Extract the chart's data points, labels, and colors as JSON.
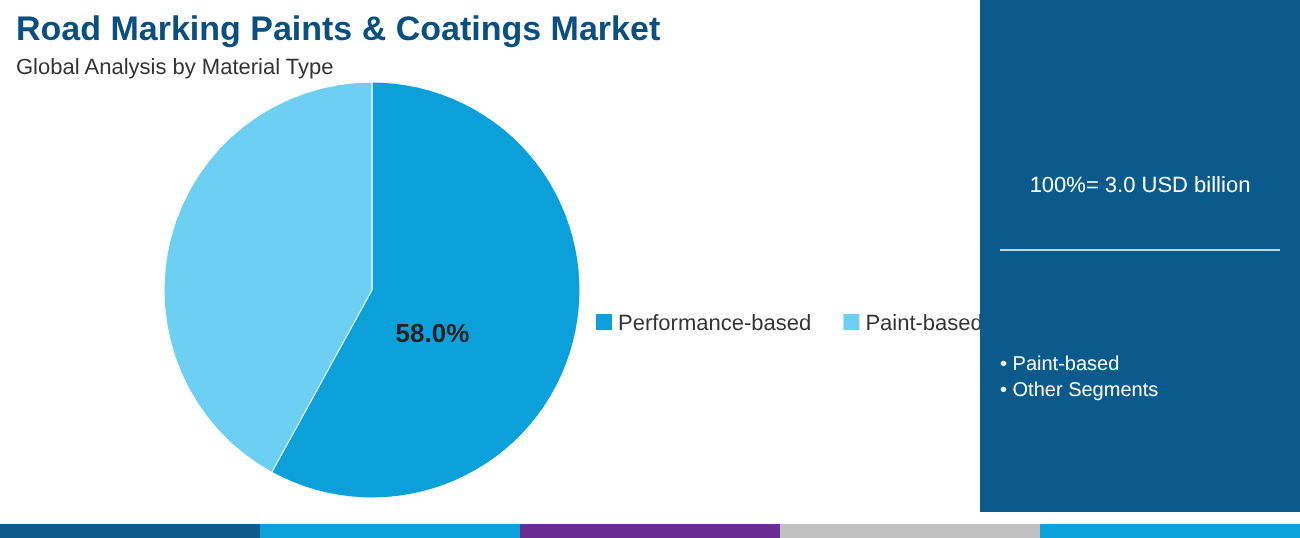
{
  "chart_data": {
    "type": "pie",
    "title": "Road Marking Paints & Coatings Market",
    "subtitle": "Global Analysis by Material Type",
    "categories": [
      "Performance-based",
      "Paint-based"
    ],
    "values": [
      58,
      42
    ],
    "colors": [
      "#0ba0d9",
      "#6dcff2"
    ],
    "value_labels": [
      "58.0%",
      null
    ],
    "legend": "right",
    "annotations": [
      "100%= 3.0 USD billion",
      "• Paint-based",
      "• Other Segments"
    ]
  }
}
